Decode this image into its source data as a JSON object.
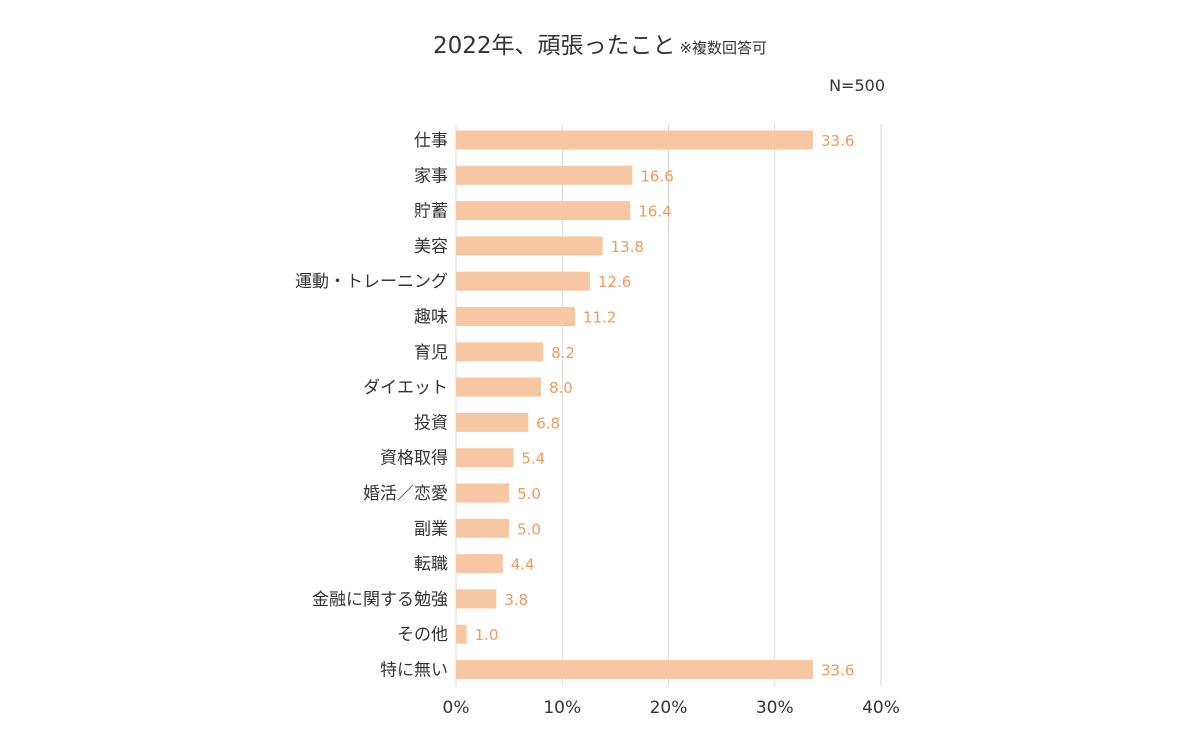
{
  "chart_data": {
    "type": "bar",
    "orientation": "horizontal",
    "title": "2022年、頑張ったこと",
    "subtitle": "※複数回答可",
    "sample_size_label": "N=500",
    "categories": [
      "仕事",
      "家事",
      "貯蓄",
      "美容",
      "運動・トレーニング",
      "趣味",
      "育児",
      "ダイエット",
      "投資",
      "資格取得",
      "婚活／恋愛",
      "副業",
      "転職",
      "金融に関する勉強",
      "その他",
      "特に無い"
    ],
    "values": [
      33.6,
      16.6,
      16.4,
      13.8,
      12.6,
      11.2,
      8.2,
      8.0,
      6.8,
      5.4,
      5.0,
      5.0,
      4.4,
      3.8,
      1.0,
      33.6
    ],
    "value_labels": [
      "33.6",
      "16.6",
      "16.4",
      "13.8",
      "12.6",
      "11.2",
      "8.2",
      "8.0",
      "6.8",
      "5.4",
      "5.0",
      "5.0",
      "4.4",
      "3.8",
      "1.0",
      "33.6"
    ],
    "xlim": [
      0,
      40
    ],
    "xticks": [
      0,
      10,
      20,
      30,
      40
    ],
    "xtick_labels": [
      "0%",
      "10%",
      "20%",
      "30%",
      "40%"
    ],
    "xlabel": "",
    "ylabel": "",
    "grid": "vertical",
    "legend": "none",
    "colors": {
      "bar": "#f7c6a3",
      "value_label": "#ef9a5c",
      "gridline": "#d9d9d9",
      "text": "#333333"
    }
  }
}
